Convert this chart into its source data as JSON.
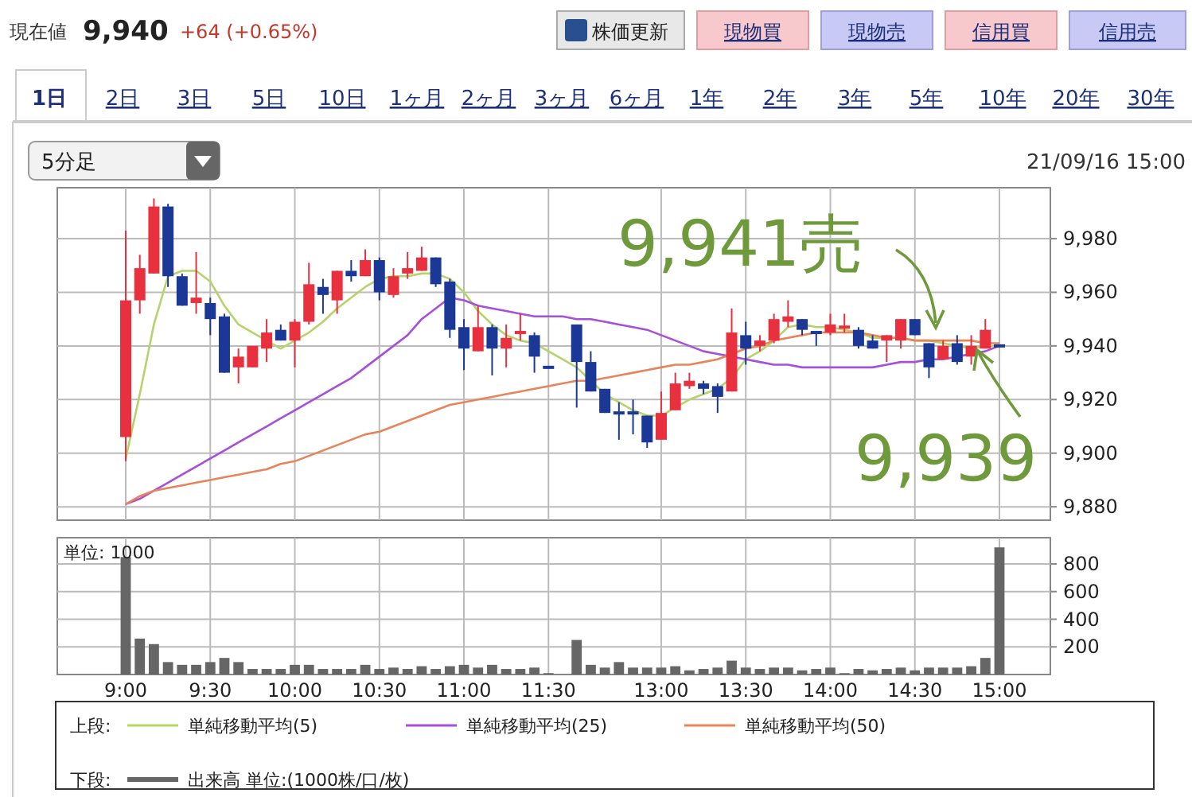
{
  "chart_data": [
    {
      "type": "candlestick",
      "categories": [
        null,
        null,
        null,
        null,
        null,
        null,
        null,
        null,
        null,
        null,
        null,
        null,
        null,
        null,
        null,
        null,
        null,
        null,
        null,
        null,
        null,
        null,
        null,
        null,
        null,
        null,
        null,
        null,
        null,
        null,
        null,
        null,
        null,
        null,
        null,
        null,
        null,
        null,
        null,
        null,
        null,
        null,
        null,
        null,
        null,
        null,
        null,
        null,
        null,
        null,
        null,
        null,
        null,
        null,
        null,
        null,
        null,
        null,
        null,
        null,
        null,
        null,
        null
      ],
      "ohlc": [
        [
          9906,
          9983,
          9897,
          9957
        ],
        [
          9957,
          9974,
          9952,
          9969
        ],
        [
          9967,
          9995,
          9967,
          9992
        ],
        [
          9992,
          9993,
          9962,
          9966
        ],
        [
          9966,
          9967,
          9955,
          9955
        ],
        [
          9956,
          9975,
          9952,
          9958
        ],
        [
          9956,
          9958,
          9944,
          9950
        ],
        [
          9951,
          9952,
          9930,
          9930
        ],
        [
          9932,
          9939,
          9926,
          9936
        ],
        [
          9932,
          9940,
          9932,
          9940
        ],
        [
          9939,
          9950,
          9934,
          9945
        ],
        [
          9946,
          9948,
          9942,
          9942
        ],
        [
          9942,
          9950,
          9932,
          9949
        ],
        [
          9949,
          9971,
          9948,
          9963
        ],
        [
          9962,
          9965,
          9952,
          9959
        ],
        [
          9957,
          9968,
          9952,
          9968
        ],
        [
          9968,
          9972,
          9964,
          9966
        ],
        [
          9966,
          9976,
          9966,
          9972
        ],
        [
          9972,
          9973,
          9957,
          9960
        ],
        [
          9959,
          9969,
          9958,
          9966
        ],
        [
          9967,
          9975,
          9965,
          9969
        ],
        [
          9968,
          9977,
          9968,
          9973
        ],
        [
          9973,
          9973,
          9962,
          9963
        ],
        [
          9964,
          9965,
          9943,
          9946
        ],
        [
          9947,
          9950,
          9931,
          9939
        ],
        [
          9938,
          9955,
          9938,
          9947
        ],
        [
          9947,
          9948,
          9929,
          9939
        ],
        [
          9939,
          9948,
          9932,
          9943
        ],
        [
          9944,
          9952,
          9942,
          9945
        ],
        [
          9944,
          9945,
          9930,
          9936
        ],
        [
          9932,
          9932,
          9932,
          9932
        ],
        null,
        [
          9948,
          9948,
          9917,
          9934
        ],
        [
          9934,
          9938,
          9923,
          9923
        ],
        [
          9924,
          9924,
          9915,
          9915
        ],
        [
          9915,
          9919,
          9905,
          9915
        ],
        [
          9915,
          9920,
          9907,
          9915
        ],
        [
          9914,
          9914,
          9902,
          9904
        ],
        [
          9905,
          9923,
          9905,
          9915
        ],
        [
          9916,
          9930,
          9916,
          9926
        ],
        [
          9925,
          9930,
          9924,
          9927
        ],
        [
          9926,
          9927,
          9922,
          9924
        ],
        [
          9925,
          9926,
          9915,
          9921
        ],
        [
          9923,
          9954,
          9923,
          9945
        ],
        [
          9944,
          9949,
          9933,
          9939
        ],
        [
          9940,
          9944,
          9938,
          9942
        ],
        [
          9942,
          9952,
          9941,
          9950
        ],
        [
          9949,
          9957,
          9947,
          9951
        ],
        [
          9950,
          9950,
          9944,
          9946
        ],
        [
          9945,
          9945,
          9940,
          9945
        ],
        [
          9945,
          9952,
          9944,
          9948
        ],
        [
          9946,
          9952,
          9945,
          9947
        ],
        [
          9946,
          9947,
          9939,
          9940
        ],
        [
          9942,
          9944,
          9939,
          9939
        ],
        [
          9942,
          9944,
          9934,
          9944
        ],
        [
          9942,
          9950,
          9939,
          9950
        ],
        [
          9950,
          9950,
          9944,
          9944
        ],
        [
          9941,
          9941,
          9928,
          9932
        ],
        [
          9935,
          9942,
          9935,
          9940
        ],
        [
          9941,
          9944,
          9933,
          9934
        ],
        [
          9936,
          9944,
          9933,
          9940
        ],
        [
          9939,
          9950,
          9939,
          9946
        ],
        [
          9940,
          9940,
          9940,
          9940
        ]
      ],
      "colors": [
        "#e8303f",
        "#e8303f",
        "#e8303f",
        "#1c3896",
        "#1c3896",
        "#e8303f",
        "#1c3896",
        "#1c3896",
        "#e8303f",
        "#e8303f",
        "#e8303f",
        "#1c3896",
        "#e8303f",
        "#e8303f",
        "#1c3896",
        "#e8303f",
        "#1c3896",
        "#e8303f",
        "#1c3896",
        "#e8303f",
        "#e8303f",
        "#e8303f",
        "#1c3896",
        "#1c3896",
        "#1c3896",
        "#e8303f",
        "#1c3896",
        "#e8303f",
        "#e8303f",
        "#1c3896",
        "#1c3896",
        null,
        "#1c3896",
        "#1c3896",
        "#1c3896",
        "#1c3896",
        "#1c3896",
        "#1c3896",
        "#e8303f",
        "#e8303f",
        "#e8303f",
        "#1c3896",
        "#1c3896",
        "#e8303f",
        "#1c3896",
        "#e8303f",
        "#e8303f",
        "#e8303f",
        "#1c3896",
        "#1c3896",
        "#e8303f",
        "#e8303f",
        "#1c3896",
        "#1c3896",
        "#e8303f",
        "#e8303f",
        "#1c3896",
        "#1c3896",
        "#e8303f",
        "#1c3896",
        "#e8303f",
        "#e8303f",
        "#1c3896"
      ],
      "series": [
        {
          "name": "単純移動平均(5)",
          "type": "line",
          "color": "#b5d36a",
          "values": [
            9898,
            9922,
            9948,
            9966,
            9968,
            9968,
            9964,
            9955,
            9948,
            9945,
            9942,
            9939,
            9942,
            9945,
            9949,
            9954,
            9958,
            9962,
            9965,
            9966,
            9966,
            9967,
            9967,
            9965,
            9960,
            9953,
            9948,
            9944,
            9942,
            9941,
            9938,
            9935,
            9932,
            9927,
            9922,
            9919,
            9916,
            9914,
            9914,
            9917,
            9920,
            9922,
            9924,
            9928,
            9935,
            9938,
            9942,
            9947,
            9948,
            9947,
            9947,
            9946,
            9945,
            9943,
            9943,
            9943,
            9942,
            9942,
            9941,
            9940,
            9939,
            9940,
            9940
          ]
        },
        {
          "name": "単純移動平均(25)",
          "type": "line",
          "color": "#a64fd8",
          "values": [
            9881,
            9883,
            9886,
            9889,
            9892,
            9895,
            9898,
            9901,
            9904,
            9907,
            9910,
            9913,
            9916,
            9919,
            9922,
            9925,
            9928,
            9932,
            9936,
            9940,
            9944,
            9950,
            9954,
            9958,
            9957,
            9955,
            9954,
            9953,
            9952,
            9951,
            9951,
            9951,
            9950,
            9950,
            9949,
            9948,
            9947,
            9946,
            9944,
            9942,
            9940,
            9938,
            9937,
            9936,
            9935,
            9934,
            9933,
            9933,
            9932,
            9932,
            9932,
            9932,
            9932,
            9932,
            9933,
            9934,
            9934,
            9935,
            9935,
            9936,
            9937,
            9938,
            9940
          ]
        },
        {
          "name": "単純移動平均(50)",
          "type": "line",
          "color": "#e8845a",
          "values": [
            9881,
            9884,
            9886,
            9887,
            9888,
            9889,
            9890,
            9891,
            9892,
            9893,
            9894,
            9896,
            9897,
            9899,
            9901,
            9903,
            9905,
            9907,
            9908,
            9910,
            9912,
            9914,
            9916,
            9918,
            9919,
            9920,
            9921,
            9922,
            9923,
            9924,
            9925,
            9926,
            9927,
            9927,
            9928,
            9929,
            9930,
            9931,
            9932,
            9933,
            9933,
            9934,
            9935,
            9937,
            9939,
            9940,
            9942,
            9943,
            9944,
            9945,
            9945,
            9945,
            9945,
            9944,
            9943,
            9943,
            9942,
            9942,
            9942,
            9942,
            9942,
            9941,
            9941
          ]
        }
      ],
      "ylim": [
        9875,
        9999
      ],
      "yticks": [
        {
          "value": 9880,
          "label": "9,880"
        },
        {
          "value": 9900,
          "label": "9,900"
        },
        {
          "value": 9920,
          "label": "9,920"
        },
        {
          "value": 9940,
          "label": "9,940"
        },
        {
          "value": 9960,
          "label": "9,960"
        },
        {
          "value": 9980,
          "label": "9,980"
        }
      ],
      "grid": true,
      "tick_labels": "y",
      "legend": "bottom",
      "annotations": [
        "現在値",
        "9,940",
        "+64 (+0.65%)",
        "株価更新",
        "現物買",
        "現物売",
        "信用買",
        "信用売",
        "1日",
        "2日",
        "3日",
        "5日",
        "10日",
        "1ヶ月",
        "2ヶ月",
        "3ヶ月",
        "6ヶ月",
        "1年",
        "2年",
        "3年",
        "5年",
        "10年",
        "20年",
        "30年",
        "5分足",
        "21/09/16 15:00",
        "9,941売",
        "9,939",
        "上段:"
      ]
    },
    {
      "type": "bar",
      "categories": [
        "9:00",
        null,
        null,
        null,
        null,
        null,
        "9:30",
        null,
        null,
        null,
        null,
        null,
        "10:00",
        null,
        null,
        null,
        null,
        null,
        "10:30",
        null,
        null,
        null,
        null,
        null,
        "11:00",
        null,
        null,
        null,
        null,
        null,
        "11:30",
        null,
        null,
        null,
        null,
        null,
        null,
        null,
        "13:00",
        null,
        null,
        null,
        null,
        null,
        "13:30",
        null,
        null,
        null,
        null,
        null,
        "14:00",
        null,
        null,
        null,
        null,
        null,
        "14:30",
        null,
        null,
        null,
        null,
        null,
        "15:00"
      ],
      "series": [
        {
          "name": "出来高 単位:(1000株/口/枚)",
          "color": "#666666",
          "values": [
            850,
            260,
            220,
            90,
            70,
            70,
            90,
            120,
            90,
            40,
            40,
            40,
            70,
            70,
            40,
            40,
            40,
            70,
            40,
            50,
            40,
            60,
            40,
            60,
            70,
            50,
            70,
            40,
            40,
            50,
            10,
            null,
            250,
            70,
            50,
            90,
            50,
            50,
            50,
            60,
            30,
            40,
            50,
            100,
            50,
            40,
            50,
            50,
            30,
            40,
            50,
            10,
            40,
            30,
            40,
            50,
            30,
            50,
            50,
            50,
            60,
            120,
            920
          ]
        }
      ],
      "ylim": [
        0,
        990
      ],
      "yticks": [
        200,
        400,
        600,
        800
      ],
      "grid": true,
      "legend": "bottom",
      "annotations": [
        "単位: 1000",
        "下段:"
      ]
    }
  ]
}
